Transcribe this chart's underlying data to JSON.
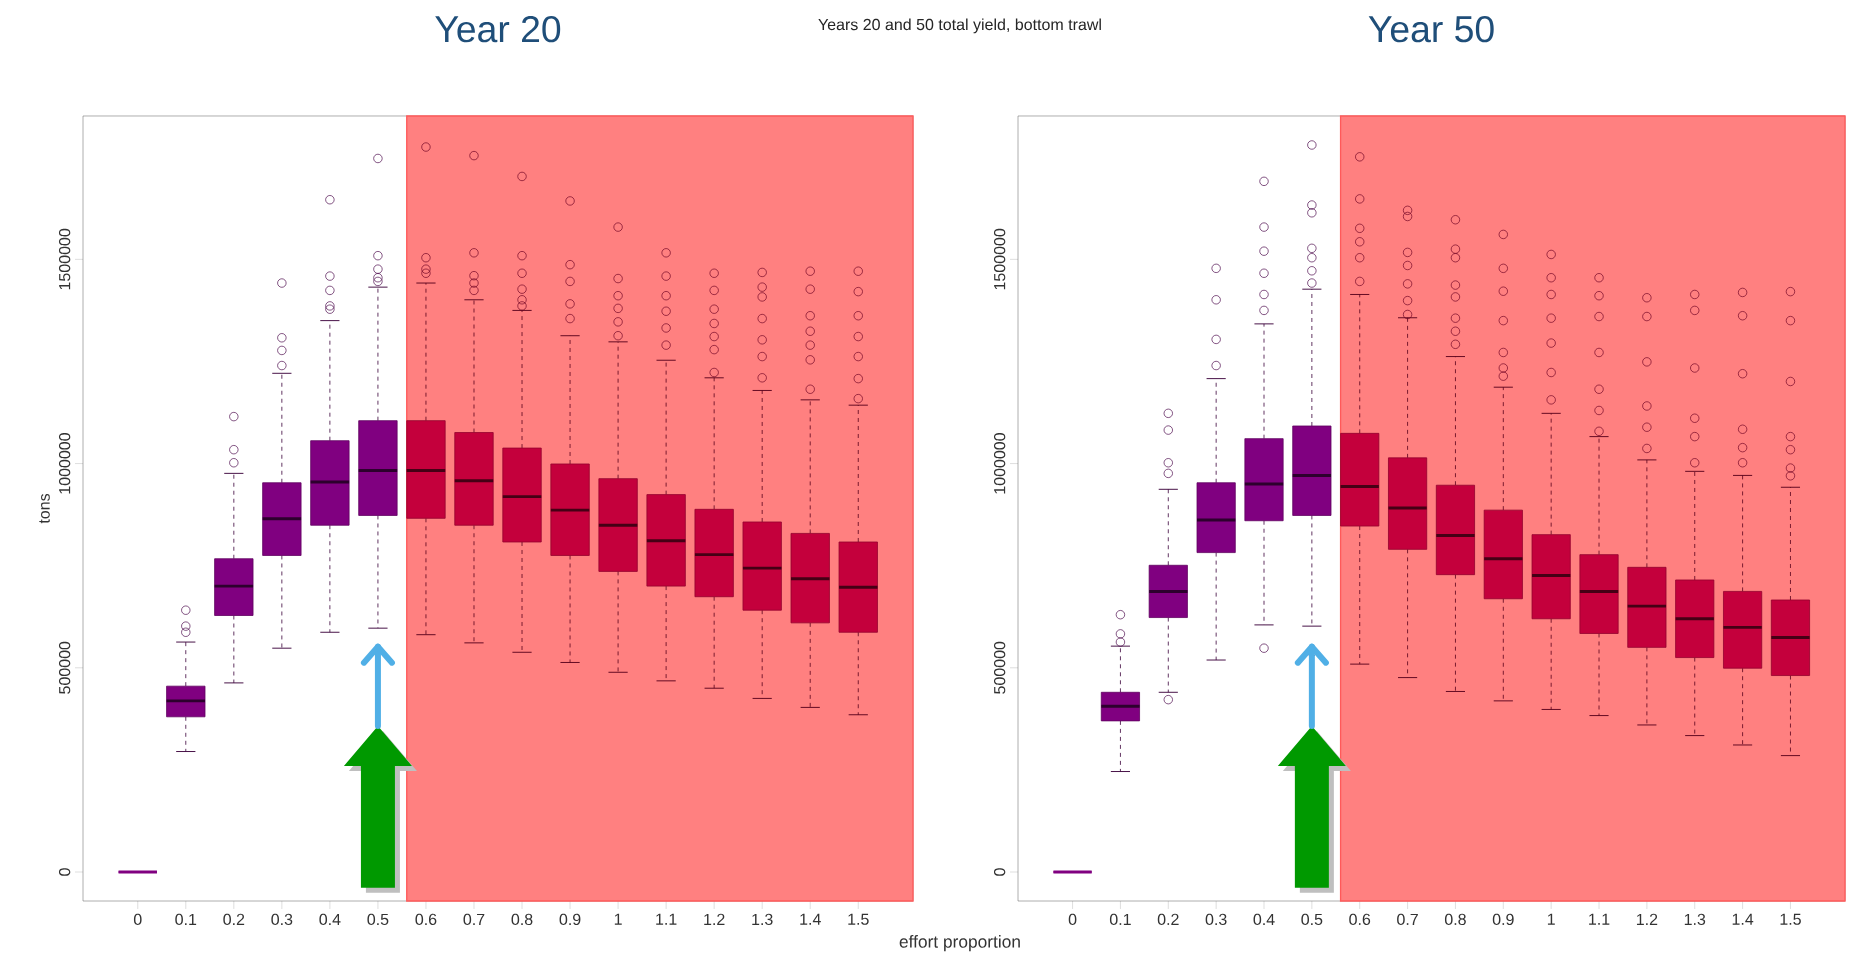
{
  "chart_data": [
    {
      "type": "box",
      "title": "Year 20",
      "ylabel": "tons",
      "xlabel": "effort proportion",
      "annotations": [
        "Years 20 and 50 total yield, bottom trawl"
      ],
      "x": [
        0,
        0.1,
        0.2,
        0.3,
        0.4,
        0.5,
        0.6,
        0.7,
        0.8,
        0.9,
        1,
        1.1,
        1.2,
        1.3,
        1.4,
        1.5
      ],
      "xlim": [
        -0.114,
        1.614
      ],
      "xticks": [
        0,
        0.1,
        0.2,
        0.3,
        0.4,
        0.5,
        0.6,
        0.7,
        0.8,
        0.9,
        1,
        1.1,
        1.2,
        1.3,
        1.4,
        1.5
      ],
      "ylim": [
        -71000,
        1851000
      ],
      "yticks": [
        0,
        500000,
        1000000,
        1500000
      ],
      "bands": [
        {
          "axis": "x",
          "from": 0.56,
          "to": 1.614,
          "color": "#ff8080"
        }
      ],
      "colors": [
        "#800080",
        "#800080",
        "#800080",
        "#800080",
        "#800080",
        "#800080",
        "#c4003c",
        "#c4003c",
        "#c4003c",
        "#c4003c",
        "#c4003c",
        "#c4003c",
        "#c4003c",
        "#c4003c",
        "#c4003c",
        "#c4003c"
      ],
      "boxes": [
        {
          "low": 0,
          "q1": 0,
          "median": 0,
          "q3": 0,
          "high": 0
        },
        {
          "low": 295000,
          "q1": 380000,
          "median": 419000,
          "q3": 455000,
          "high": 563000,
          "outliers": [
            587000,
            602000,
            641000
          ]
        },
        {
          "low": 463000,
          "q1": 628000,
          "median": 700000,
          "q3": 767000,
          "high": 976000,
          "outliers": [
            1002000,
            1034000,
            1115000
          ]
        },
        {
          "low": 548000,
          "q1": 775000,
          "median": 865000,
          "q3": 953000,
          "high": 1221000,
          "outliers": [
            1240000,
            1277000,
            1308000,
            1442000
          ]
        },
        {
          "low": 587000,
          "q1": 849000,
          "median": 955000,
          "q3": 1056000,
          "high": 1350000,
          "outliers": [
            1378000,
            1386000,
            1424000,
            1459000,
            1646000
          ]
        },
        {
          "low": 597000,
          "q1": 873000,
          "median": 983000,
          "q3": 1105000,
          "high": 1432000,
          "outliers": [
            1446000,
            1455000,
            1476000,
            1509000,
            1747000
          ]
        },
        {
          "low": 581000,
          "q1": 866000,
          "median": 983000,
          "q3": 1105000,
          "high": 1442000,
          "outliers": [
            1466000,
            1476000,
            1504000,
            1775000
          ]
        },
        {
          "low": 561000,
          "q1": 849000,
          "median": 958000,
          "q3": 1076000,
          "high": 1401000,
          "outliers": [
            1424000,
            1442000,
            1460000,
            1516000,
            1754000
          ]
        },
        {
          "low": 538000,
          "q1": 808000,
          "median": 919000,
          "q3": 1038000,
          "high": 1375000,
          "outliers": [
            1386000,
            1401000,
            1427000,
            1466000,
            1509000,
            1703000
          ]
        },
        {
          "low": 513000,
          "q1": 775000,
          "median": 886000,
          "q3": 999000,
          "high": 1313000,
          "outliers": [
            1355000,
            1391000,
            1446000,
            1487000,
            1643000
          ]
        },
        {
          "low": 489000,
          "q1": 736000,
          "median": 849000,
          "q3": 963000,
          "high": 1298000,
          "outliers": [
            1313000,
            1347000,
            1380000,
            1411000,
            1453000,
            1579000
          ]
        },
        {
          "low": 468000,
          "q1": 700000,
          "median": 811000,
          "q3": 924000,
          "high": 1253000,
          "outliers": [
            1290000,
            1332000,
            1373000,
            1411000,
            1459000,
            1516000
          ]
        },
        {
          "low": 450000,
          "q1": 674000,
          "median": 777000,
          "q3": 888000,
          "high": 1210000,
          "outliers": [
            1223000,
            1279000,
            1311000,
            1343000,
            1378000,
            1424000,
            1466000
          ]
        },
        {
          "low": 425000,
          "q1": 641000,
          "median": 744000,
          "q3": 857000,
          "high": 1179000,
          "outliers": [
            1210000,
            1262000,
            1303000,
            1355000,
            1408000,
            1432000,
            1468000
          ]
        },
        {
          "low": 403000,
          "q1": 610000,
          "median": 718000,
          "q3": 829000,
          "high": 1156000,
          "outliers": [
            1182000,
            1254000,
            1290000,
            1324000,
            1362000,
            1427000,
            1471000
          ]
        },
        {
          "low": 385000,
          "q1": 587000,
          "median": 697000,
          "q3": 808000,
          "high": 1143000,
          "outliers": [
            1159000,
            1208000,
            1262000,
            1311000,
            1362000,
            1421000,
            1471000
          ]
        }
      ]
    },
    {
      "type": "box",
      "title": "Year 50",
      "x": [
        0,
        0.1,
        0.2,
        0.3,
        0.4,
        0.5,
        0.6,
        0.7,
        0.8,
        0.9,
        1,
        1.1,
        1.2,
        1.3,
        1.4,
        1.5
      ],
      "xlim": [
        -0.114,
        1.614
      ],
      "xticks": [
        0,
        0.1,
        0.2,
        0.3,
        0.4,
        0.5,
        0.6,
        0.7,
        0.8,
        0.9,
        1,
        1.1,
        1.2,
        1.3,
        1.4,
        1.5
      ],
      "ylim": [
        -71000,
        1851000
      ],
      "yticks": [
        0,
        500000,
        1000000,
        1500000
      ],
      "bands": [
        {
          "axis": "x",
          "from": 0.56,
          "to": 1.614,
          "color": "#ff8080"
        }
      ],
      "colors": [
        "#800080",
        "#800080",
        "#800080",
        "#800080",
        "#800080",
        "#800080",
        "#c4003c",
        "#c4003c",
        "#c4003c",
        "#c4003c",
        "#c4003c",
        "#c4003c",
        "#c4003c",
        "#c4003c",
        "#c4003c",
        "#c4003c"
      ],
      "boxes": [
        {
          "low": 0,
          "q1": 0,
          "median": 0,
          "q3": 0,
          "high": 0
        },
        {
          "low": 246000,
          "q1": 370000,
          "median": 406000,
          "q3": 440000,
          "high": 553000,
          "outliers": [
            563000,
            583000,
            630000
          ]
        },
        {
          "low": 440000,
          "q1": 623000,
          "median": 687000,
          "q3": 751000,
          "high": 937000,
          "outliers": [
            422000,
            976000,
            1002000,
            1082000,
            1123000
          ]
        },
        {
          "low": 519000,
          "q1": 782000,
          "median": 862000,
          "q3": 953000,
          "high": 1208000,
          "outliers": [
            1240000,
            1304000,
            1401000,
            1478000
          ]
        },
        {
          "low": 605000,
          "q1": 860000,
          "median": 950000,
          "q3": 1061000,
          "high": 1342000,
          "outliers": [
            548000,
            1375000,
            1414000,
            1466000,
            1520000,
            1579000,
            1691000
          ]
        },
        {
          "low": 602000,
          "q1": 873000,
          "median": 971000,
          "q3": 1092000,
          "high": 1427000,
          "outliers": [
            538000,
            1442000,
            1472000,
            1504000,
            1527000,
            1614000,
            1633000,
            1780000
          ]
        },
        {
          "low": 509000,
          "q1": 847000,
          "median": 944000,
          "q3": 1074000,
          "high": 1414000,
          "outliers": [
            1446000,
            1504000,
            1543000,
            1576000,
            1648000,
            1751000
          ]
        },
        {
          "low": 476000,
          "q1": 790000,
          "median": 891000,
          "q3": 1014000,
          "high": 1357000,
          "outliers": [
            1365000,
            1399000,
            1440000,
            1485000,
            1517000,
            1605000,
            1620000
          ]
        },
        {
          "low": 442000,
          "q1": 728000,
          "median": 824000,
          "q3": 947000,
          "high": 1262000,
          "outliers": [
            1292000,
            1324000,
            1356000,
            1408000,
            1437000,
            1504000,
            1525000,
            1597000
          ]
        },
        {
          "low": 419000,
          "q1": 669000,
          "median": 767000,
          "q3": 886000,
          "high": 1187000,
          "outliers": [
            1214000,
            1234000,
            1272000,
            1350000,
            1422000,
            1478000,
            1561000
          ]
        },
        {
          "low": 398000,
          "q1": 620000,
          "median": 726000,
          "q3": 826000,
          "high": 1123000,
          "outliers": [
            1156000,
            1223000,
            1295000,
            1356000,
            1414000,
            1455000,
            1512000
          ]
        },
        {
          "low": 383000,
          "q1": 584000,
          "median": 687000,
          "q3": 777000,
          "high": 1066000,
          "outliers": [
            1079000,
            1130000,
            1182000,
            1272000,
            1360000,
            1411000,
            1455000
          ]
        },
        {
          "low": 360000,
          "q1": 550000,
          "median": 651000,
          "q3": 746000,
          "high": 1009000,
          "outliers": [
            1037000,
            1089000,
            1141000,
            1249000,
            1360000,
            1406000
          ]
        },
        {
          "low": 334000,
          "q1": 525000,
          "median": 620000,
          "q3": 715000,
          "high": 981000,
          "outliers": [
            1002000,
            1066000,
            1111000,
            1234000,
            1375000,
            1414000
          ]
        },
        {
          "low": 311000,
          "q1": 499000,
          "median": 599000,
          "q3": 687000,
          "high": 971000,
          "outliers": [
            1002000,
            1039000,
            1084000,
            1220000,
            1362000,
            1419000
          ]
        },
        {
          "low": 285000,
          "q1": 481000,
          "median": 574000,
          "q3": 666000,
          "high": 942000,
          "outliers": [
            970000,
            989000,
            1034000,
            1066000,
            1201000,
            1350000,
            1421000
          ]
        }
      ]
    }
  ]
}
